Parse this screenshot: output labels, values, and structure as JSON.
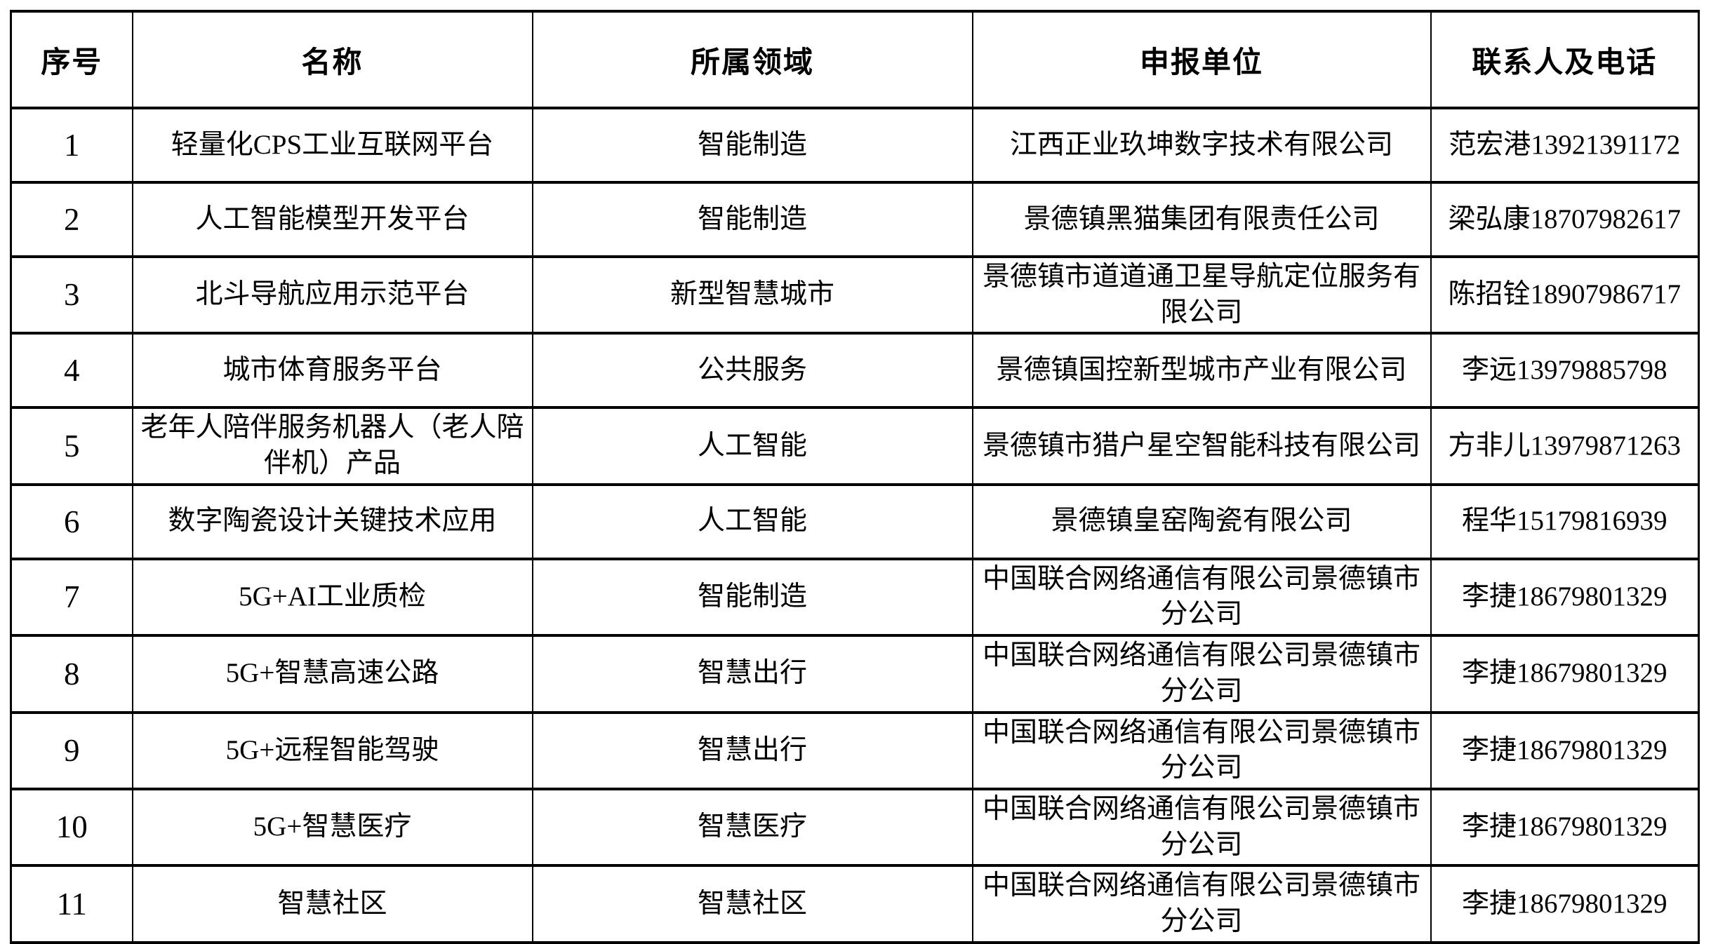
{
  "table": {
    "headers": [
      "序号",
      "名称",
      "所属领域",
      "申报单位",
      "联系人及电话"
    ],
    "rows": [
      [
        "1",
        "轻量化CPS工业互联网平台",
        "智能制造",
        "江西正业玖坤数字技术有限公司",
        "范宏港13921391172"
      ],
      [
        "2",
        "人工智能模型开发平台",
        "智能制造",
        "景德镇黑猫集团有限责任公司",
        "梁弘康18707982617"
      ],
      [
        "3",
        "北斗导航应用示范平台",
        "新型智慧城市",
        "景德镇市道道通卫星导航定位服务有\n限公司",
        "陈招铨18907986717"
      ],
      [
        "4",
        "城市体育服务平台",
        "公共服务",
        "景德镇国控新型城市产业有限公司",
        "李远13979885798"
      ],
      [
        "5",
        "老年人陪伴服务机器人（老人陪\n伴机）产品",
        "人工智能",
        "景德镇市猎户星空智能科技有限公司",
        "方非儿13979871263"
      ],
      [
        "6",
        "数字陶瓷设计关键技术应用",
        "人工智能",
        "景德镇皇窑陶瓷有限公司",
        "程华15179816939"
      ],
      [
        "7",
        "5G+AI工业质检",
        "智能制造",
        "中国联合网络通信有限公司景德镇市\n分公司",
        "李捷18679801329"
      ],
      [
        "8",
        "5G+智慧高速公路",
        "智慧出行",
        "中国联合网络通信有限公司景德镇市\n分公司",
        "李捷18679801329"
      ],
      [
        "9",
        "5G+远程智能驾驶",
        "智慧出行",
        "中国联合网络通信有限公司景德镇市\n分公司",
        "李捷18679801329"
      ],
      [
        "10",
        "5G+智慧医疗",
        "智慧医疗",
        "中国联合网络通信有限公司景德镇市\n分公司",
        "李捷18679801329"
      ],
      [
        "11",
        "智慧社区",
        "智慧社区",
        "中国联合网络通信有限公司景德镇市\n分公司",
        "李捷18679801329"
      ]
    ]
  },
  "colors": {
    "border": "#000000",
    "text": "#000000",
    "background": "#ffffff"
  }
}
